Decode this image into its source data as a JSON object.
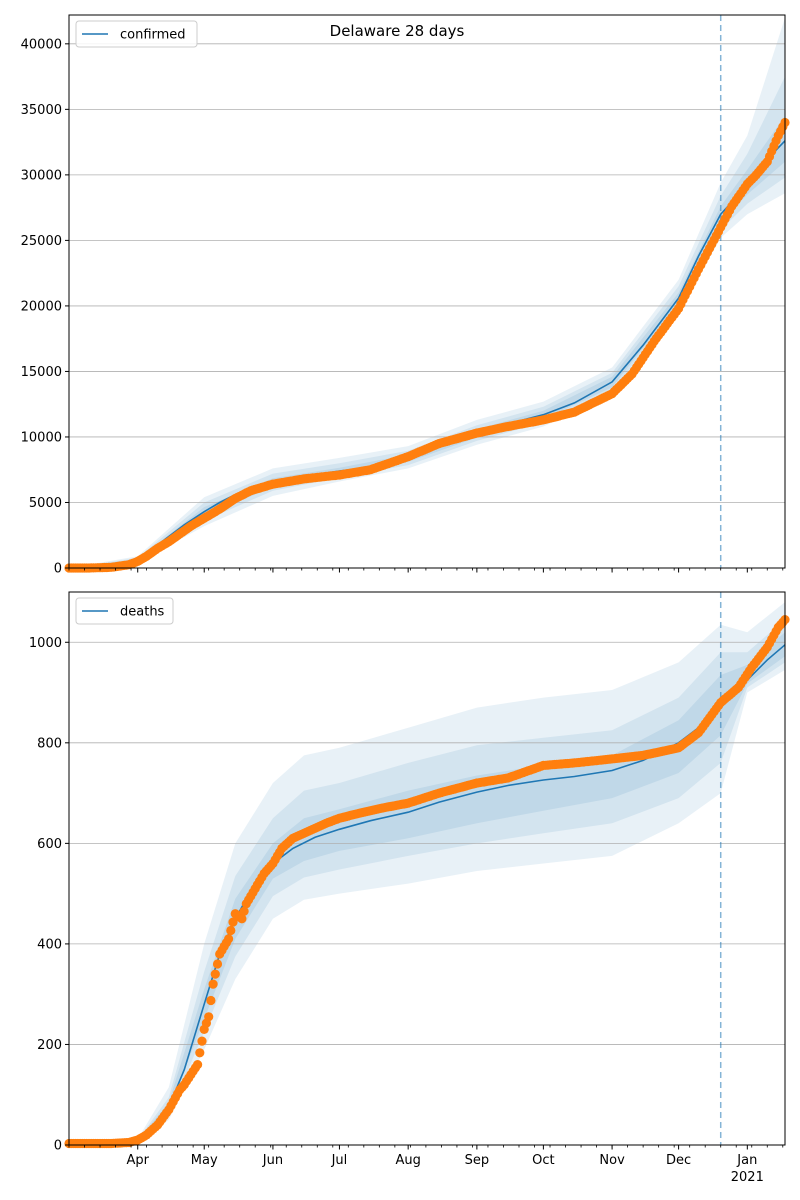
{
  "figure": {
    "title": "Delaware 28 days"
  },
  "chart_data": [
    {
      "type": "line",
      "name": "confirmed-panel",
      "legend": [
        "confirmed"
      ],
      "legend_position": "top-left",
      "grid": "y",
      "xlim": [
        "2020-03-01",
        "2021-01-18"
      ],
      "ylim": [
        0,
        42200
      ],
      "yticks": [
        0,
        5000,
        10000,
        15000,
        20000,
        25000,
        30000,
        35000,
        40000
      ],
      "forecast_start": "2020-12-20",
      "colors": {
        "model": "#1f77b4",
        "observed": "#ff7f0e",
        "band": "#1f77b4"
      },
      "model": {
        "x": [
          "2020-03-01",
          "2020-03-10",
          "2020-03-15",
          "2020-03-20",
          "2020-03-25",
          "2020-04-01",
          "2020-04-08",
          "2020-04-15",
          "2020-04-22",
          "2020-05-01",
          "2020-05-08",
          "2020-05-15",
          "2020-05-22",
          "2020-06-01",
          "2020-06-15",
          "2020-07-01",
          "2020-07-15",
          "2020-08-01",
          "2020-08-15",
          "2020-09-01",
          "2020-09-15",
          "2020-10-01",
          "2020-10-15",
          "2020-11-01",
          "2020-11-15",
          "2020-12-01",
          "2020-12-10",
          "2020-12-20",
          "2021-01-01",
          "2021-01-10",
          "2021-01-18"
        ],
        "y": [
          0,
          0,
          10,
          40,
          150,
          600,
          1500,
          2400,
          3300,
          4300,
          5000,
          5600,
          6100,
          6500,
          7000,
          7400,
          7700,
          8400,
          9300,
          10300,
          11000,
          11700,
          12600,
          14200,
          17000,
          20600,
          23800,
          27000,
          29200,
          31200,
          32600
        ]
      },
      "bands": [
        {
          "x": [
            "2020-03-01",
            "2020-04-01",
            "2020-05-01",
            "2020-06-01",
            "2020-07-01",
            "2020-08-01",
            "2020-09-01",
            "2020-10-01",
            "2020-11-01",
            "2020-12-01",
            "2020-12-20",
            "2021-01-01",
            "2021-01-18"
          ],
          "low": [
            0,
            400,
            3200,
            5500,
            6600,
            7600,
            9400,
            10800,
            13200,
            19400,
            25200,
            27000,
            28600
          ],
          "high": [
            0,
            900,
            5400,
            7600,
            8400,
            9300,
            11300,
            12700,
            15300,
            22000,
            29400,
            33000,
            42000
          ]
        },
        {
          "x": [
            "2020-03-01",
            "2020-04-01",
            "2020-05-01",
            "2020-06-01",
            "2020-07-01",
            "2020-08-01",
            "2020-09-01",
            "2020-10-01",
            "2020-11-01",
            "2020-12-01",
            "2020-12-20",
            "2021-01-01",
            "2021-01-18"
          ],
          "low": [
            0,
            480,
            3600,
            5900,
            6900,
            7850,
            9700,
            11100,
            13500,
            19800,
            25800,
            27800,
            29800
          ],
          "high": [
            0,
            780,
            5000,
            7200,
            8000,
            8950,
            10900,
            12300,
            14900,
            21500,
            28400,
            31600,
            37500
          ]
        },
        {
          "x": [
            "2020-03-01",
            "2020-04-01",
            "2020-05-01",
            "2020-06-01",
            "2020-07-01",
            "2020-08-01",
            "2020-09-01",
            "2020-10-01",
            "2020-11-01",
            "2020-12-01",
            "2020-12-20",
            "2021-01-01",
            "2021-01-18"
          ],
          "low": [
            0,
            540,
            3950,
            6200,
            7150,
            8100,
            9950,
            11350,
            13800,
            20200,
            26400,
            28500,
            31000
          ],
          "high": [
            0,
            680,
            4650,
            6850,
            7650,
            8650,
            10600,
            12000,
            14600,
            21000,
            27600,
            30400,
            34500
          ]
        }
      ],
      "observed": {
        "x": [
          "2020-03-01",
          "2020-03-10",
          "2020-03-20",
          "2020-03-28",
          "2020-04-01",
          "2020-04-05",
          "2020-04-10",
          "2020-04-15",
          "2020-04-20",
          "2020-04-25",
          "2020-05-01",
          "2020-05-08",
          "2020-05-15",
          "2020-05-22",
          "2020-06-01",
          "2020-06-15",
          "2020-07-01",
          "2020-07-15",
          "2020-08-01",
          "2020-08-15",
          "2020-09-01",
          "2020-09-15",
          "2020-10-01",
          "2020-10-15",
          "2020-11-01",
          "2020-11-10",
          "2020-11-20",
          "2020-12-01",
          "2020-12-10",
          "2020-12-20",
          "2020-12-25",
          "2021-01-01",
          "2021-01-05",
          "2021-01-10",
          "2021-01-15",
          "2021-01-18"
        ],
        "y": [
          0,
          0,
          50,
          250,
          500,
          900,
          1500,
          2000,
          2600,
          3200,
          3800,
          4500,
          5300,
          5900,
          6400,
          6800,
          7100,
          7500,
          8500,
          9500,
          10300,
          10800,
          11300,
          11900,
          13300,
          14800,
          17300,
          19800,
          22800,
          26000,
          27600,
          29300,
          30000,
          31000,
          33000,
          34000
        ]
      }
    },
    {
      "type": "line",
      "name": "deaths-panel",
      "legend": [
        "deaths"
      ],
      "legend_position": "top-left",
      "grid": "y",
      "xlim": [
        "2020-03-01",
        "2021-01-18"
      ],
      "ylim": [
        0,
        1100
      ],
      "yticks": [
        0,
        200,
        400,
        600,
        800,
        1000
      ],
      "xticks": [
        {
          "date": "2020-04-01",
          "label": "Apr"
        },
        {
          "date": "2020-05-01",
          "label": "May"
        },
        {
          "date": "2020-06-01",
          "label": "Jun"
        },
        {
          "date": "2020-07-01",
          "label": "Jul"
        },
        {
          "date": "2020-08-01",
          "label": "Aug"
        },
        {
          "date": "2020-09-01",
          "label": "Sep"
        },
        {
          "date": "2020-10-01",
          "label": "Oct"
        },
        {
          "date": "2020-11-01",
          "label": "Nov"
        },
        {
          "date": "2020-12-01",
          "label": "Dec"
        },
        {
          "date": "2021-01-01",
          "label": "Jan",
          "sublabel": "2021"
        }
      ],
      "forecast_start": "2020-12-20",
      "colors": {
        "model": "#1f77b4",
        "observed": "#ff7f0e",
        "band": "#1f77b4"
      },
      "model": {
        "x": [
          "2020-03-01",
          "2020-03-20",
          "2020-03-25",
          "2020-04-01",
          "2020-04-08",
          "2020-04-15",
          "2020-04-22",
          "2020-05-01",
          "2020-05-08",
          "2020-05-15",
          "2020-05-22",
          "2020-06-01",
          "2020-06-10",
          "2020-06-20",
          "2020-07-01",
          "2020-07-15",
          "2020-08-01",
          "2020-08-15",
          "2020-09-01",
          "2020-09-15",
          "2020-10-01",
          "2020-10-15",
          "2020-11-01",
          "2020-11-15",
          "2020-12-01",
          "2020-12-10",
          "2020-12-20",
          "2021-01-01",
          "2021-01-10",
          "2021-01-18"
        ],
        "y": [
          0,
          0,
          2,
          8,
          30,
          75,
          150,
          280,
          380,
          450,
          505,
          560,
          590,
          612,
          628,
          645,
          662,
          682,
          702,
          715,
          726,
          733,
          745,
          765,
          800,
          830,
          870,
          925,
          965,
          995
        ]
      },
      "bands": [
        {
          "x": [
            "2020-03-01",
            "2020-04-01",
            "2020-04-15",
            "2020-05-01",
            "2020-05-15",
            "2020-06-01",
            "2020-06-15",
            "2020-07-01",
            "2020-08-01",
            "2020-09-01",
            "2020-10-01",
            "2020-11-01",
            "2020-12-01",
            "2020-12-20",
            "2021-01-01",
            "2021-01-18"
          ],
          "low": [
            0,
            5,
            50,
            190,
            330,
            450,
            488,
            500,
            520,
            545,
            560,
            575,
            640,
            700,
            900,
            945
          ],
          "high": [
            0,
            12,
            115,
            400,
            600,
            720,
            775,
            790,
            830,
            870,
            890,
            905,
            960,
            1035,
            1020,
            1080
          ]
        },
        {
          "x": [
            "2020-03-01",
            "2020-04-01",
            "2020-04-15",
            "2020-05-01",
            "2020-05-15",
            "2020-06-01",
            "2020-06-15",
            "2020-07-01",
            "2020-08-01",
            "2020-09-01",
            "2020-10-01",
            "2020-11-01",
            "2020-12-01",
            "2020-12-20",
            "2021-01-01",
            "2021-01-18"
          ],
          "low": [
            0,
            6,
            60,
            225,
            375,
            495,
            532,
            548,
            575,
            600,
            620,
            640,
            690,
            760,
            910,
            960
          ],
          "high": [
            0,
            10,
            95,
            345,
            535,
            650,
            705,
            720,
            760,
            795,
            810,
            825,
            890,
            980,
            980,
            1045
          ]
        },
        {
          "x": [
            "2020-03-01",
            "2020-04-01",
            "2020-04-15",
            "2020-05-01",
            "2020-05-15",
            "2020-06-01",
            "2020-06-15",
            "2020-07-01",
            "2020-08-01",
            "2020-09-01",
            "2020-10-01",
            "2020-11-01",
            "2020-12-01",
            "2020-12-20",
            "2021-01-01",
            "2021-01-18"
          ],
          "low": [
            0,
            7,
            68,
            250,
            410,
            530,
            565,
            585,
            610,
            640,
            665,
            690,
            740,
            815,
            918,
            972
          ],
          "high": [
            0,
            9,
            85,
            310,
            490,
            600,
            650,
            668,
            705,
            735,
            755,
            775,
            845,
            935,
            955,
            1020
          ]
        }
      ],
      "observed": {
        "x": [
          "2020-03-01",
          "2020-03-20",
          "2020-03-28",
          "2020-04-01",
          "2020-04-05",
          "2020-04-10",
          "2020-04-15",
          "2020-04-20",
          "2020-04-22",
          "2020-04-25",
          "2020-04-28",
          "2020-05-01",
          "2020-05-03",
          "2020-05-05",
          "2020-05-08",
          "2020-05-12",
          "2020-05-15",
          "2020-05-18",
          "2020-05-20",
          "2020-05-24",
          "2020-05-28",
          "2020-06-01",
          "2020-06-05",
          "2020-06-10",
          "2020-06-15",
          "2020-06-20",
          "2020-06-25",
          "2020-07-01",
          "2020-07-10",
          "2020-07-20",
          "2020-08-01",
          "2020-08-15",
          "2020-09-01",
          "2020-09-15",
          "2020-10-01",
          "2020-10-15",
          "2020-11-01",
          "2020-11-15",
          "2020-12-01",
          "2020-12-10",
          "2020-12-20",
          "2020-12-28",
          "2021-01-03",
          "2021-01-10",
          "2021-01-15",
          "2021-01-18"
        ],
        "y": [
          3,
          3,
          5,
          10,
          20,
          40,
          70,
          110,
          120,
          140,
          160,
          230,
          255,
          320,
          380,
          410,
          460,
          450,
          480,
          510,
          540,
          560,
          590,
          610,
          620,
          630,
          640,
          650,
          660,
          670,
          680,
          700,
          720,
          730,
          755,
          760,
          768,
          775,
          790,
          820,
          880,
          910,
          950,
          990,
          1030,
          1045
        ]
      }
    }
  ]
}
